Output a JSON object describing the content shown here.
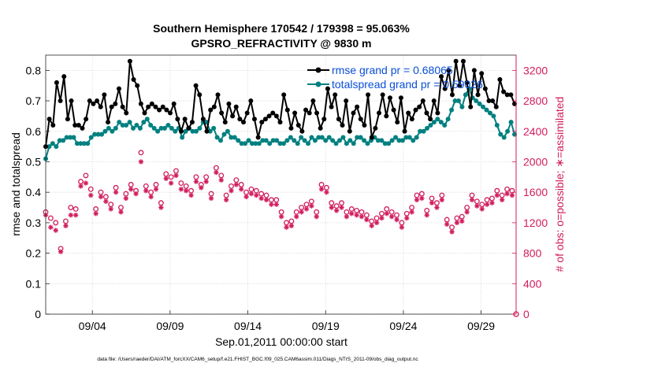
{
  "chart_data": {
    "type": "line",
    "title": "Southern Hemisphere 170542 / 179398 = 95.063%",
    "subtitle": "GPSRO_REFRACTIVITY @ 9830 m",
    "xlabel": "Sep.01,2011 00:00:00 start",
    "ylabel_left": "rmse and totalspread",
    "ylabel_right": "# of obs: o=possible; ∗=assimilated",
    "footer": "data file: /Users/raeder/DAI/ATM_forcXX/CAM6_setup/f.e21.FHIST_BGC.f09_025.CAM6assim.011/Diags_NTrS_2011-09/obs_diag_output.nc",
    "x_tick_labels": [
      "09/04",
      "09/09",
      "09/14",
      "09/19",
      "09/24",
      "09/29"
    ],
    "x_tick_days": [
      4,
      9,
      14,
      19,
      24,
      29
    ],
    "xlim_days": [
      1,
      31.25
    ],
    "ylim_left": [
      0,
      0.85
    ],
    "left_ticks": [
      "0",
      "0.1",
      "0.2",
      "0.3",
      "0.4",
      "0.5",
      "0.6",
      "0.7",
      "0.8"
    ],
    "ylim_right": [
      0,
      3400
    ],
    "right_ticks": [
      "0",
      "400",
      "800",
      "1200",
      "1600",
      "2000",
      "2400",
      "2800",
      "3200"
    ],
    "grid": true,
    "legend_position": "top-right",
    "colors": {
      "rmse": "#000000",
      "spread": "#008080",
      "obs": "#d11c5d",
      "legend_text": "#0a4fd8",
      "right_axis": "#d11c5d"
    },
    "series": [
      {
        "name": "rmse grand pr = 0.68065",
        "axis": "left",
        "values": [
          0.55,
          0.64,
          0.62,
          0.76,
          0.7,
          0.78,
          0.64,
          0.7,
          0.62,
          0.62,
          0.61,
          0.64,
          0.7,
          0.69,
          0.7,
          0.68,
          0.72,
          0.63,
          0.68,
          0.69,
          0.74,
          0.68,
          0.66,
          0.83,
          0.77,
          0.75,
          0.69,
          0.66,
          0.68,
          0.69,
          0.68,
          0.67,
          0.68,
          0.67,
          0.66,
          0.69,
          0.64,
          0.6,
          0.64,
          0.61,
          0.63,
          0.75,
          0.72,
          0.64,
          0.6,
          0.67,
          0.68,
          0.72,
          0.66,
          0.63,
          0.69,
          0.65,
          0.68,
          0.64,
          0.63,
          0.66,
          0.7,
          0.64,
          0.58,
          0.63,
          0.64,
          0.65,
          0.66,
          0.65,
          0.63,
          0.72,
          0.67,
          0.61,
          0.66,
          0.62,
          0.6,
          0.67,
          0.66,
          0.7,
          0.66,
          0.61,
          0.64,
          0.74,
          0.68,
          0.72,
          0.64,
          0.62,
          0.7,
          0.6,
          0.66,
          0.68,
          0.64,
          0.62,
          0.72,
          0.58,
          0.61,
          0.66,
          0.72,
          0.65,
          0.71,
          0.67,
          0.63,
          0.71,
          0.6,
          0.66,
          0.64,
          0.67,
          0.68,
          0.7,
          0.66,
          0.64,
          0.7,
          0.66,
          0.78,
          0.74,
          0.8,
          0.72,
          0.83,
          0.75,
          0.83,
          0.76,
          0.68,
          0.8,
          0.72,
          0.79,
          0.74,
          0.7,
          0.7,
          0.68,
          0.77,
          0.73,
          0.72,
          0.72,
          0.69
        ]
      },
      {
        "name": "totalspread grand pr = 0.59026",
        "axis": "left",
        "values": [
          0.51,
          0.55,
          0.56,
          0.55,
          0.57,
          0.57,
          0.58,
          0.58,
          0.58,
          0.56,
          0.56,
          0.56,
          0.56,
          0.58,
          0.59,
          0.59,
          0.59,
          0.6,
          0.61,
          0.6,
          0.61,
          0.63,
          0.62,
          0.62,
          0.63,
          0.61,
          0.62,
          0.61,
          0.63,
          0.64,
          0.62,
          0.61,
          0.6,
          0.61,
          0.61,
          0.62,
          0.61,
          0.6,
          0.61,
          0.58,
          0.6,
          0.61,
          0.6,
          0.6,
          0.61,
          0.63,
          0.63,
          0.6,
          0.61,
          0.58,
          0.57,
          0.59,
          0.6,
          0.58,
          0.58,
          0.57,
          0.56,
          0.56,
          0.57,
          0.56,
          0.56,
          0.56,
          0.57,
          0.57,
          0.56,
          0.57,
          0.57,
          0.56,
          0.56,
          0.57,
          0.58,
          0.57,
          0.56,
          0.58,
          0.57,
          0.56,
          0.58,
          0.57,
          0.58,
          0.58,
          0.57,
          0.58,
          0.57,
          0.56,
          0.57,
          0.58,
          0.56,
          0.57,
          0.56,
          0.58,
          0.58,
          0.57,
          0.56,
          0.57,
          0.58,
          0.57,
          0.57,
          0.56,
          0.56,
          0.57,
          0.58,
          0.57,
          0.57,
          0.58,
          0.58,
          0.57,
          0.58,
          0.6,
          0.6,
          0.61,
          0.62,
          0.63,
          0.64,
          0.63,
          0.62,
          0.64,
          0.67,
          0.7,
          0.7,
          0.68,
          0.72,
          0.74,
          0.71,
          0.7,
          0.69,
          0.68,
          0.67,
          0.66,
          0.65,
          0.62,
          0.59,
          0.58,
          0.6,
          0.63,
          0.59
        ]
      },
      {
        "name": "possible",
        "axis": "right",
        "marker": "o",
        "values": [
          1340,
          1260,
          1200,
          860,
          1220,
          1400,
          1380,
          1740,
          1820,
          1640,
          1380,
          1600,
          1540,
          1440,
          1660,
          1400,
          1580,
          1700,
          1620,
          2120,
          1680,
          1600,
          1700,
          1460,
          1840,
          1800,
          1880,
          1720,
          1680,
          1620,
          1800,
          1700,
          1800,
          1580,
          1920,
          1820,
          1560,
          1680,
          1760,
          1700,
          1600,
          1640,
          1620,
          1580,
          1560,
          1500,
          1500,
          1340,
          1200,
          1220,
          1340,
          1400,
          1440,
          1480,
          1340,
          1700,
          1660,
          1460,
          1420,
          1460,
          1340,
          1380,
          1360,
          1340,
          1300,
          1220,
          1260,
          1320,
          1380,
          1340,
          1300,
          1200,
          1320,
          1400,
          1560,
          1580,
          1360,
          1520,
          1460,
          1560,
          1240,
          1140,
          1260,
          1280,
          1400,
          1560,
          1480,
          1440,
          1500,
          1520,
          1620,
          1560,
          1640,
          1620
        ]
      },
      {
        "name": "assimilated",
        "axis": "right",
        "marker": "*",
        "values": [
          1300,
          1140,
          1100,
          820,
          1160,
          1300,
          1300,
          1680,
          1720,
          1560,
          1320,
          1540,
          1480,
          1380,
          1600,
          1340,
          1520,
          1640,
          1580,
          2000,
          1620,
          1540,
          1640,
          1400,
          1780,
          1720,
          1820,
          1640,
          1620,
          1560,
          1740,
          1660,
          1740,
          1520,
          1860,
          1760,
          1500,
          1620,
          1700,
          1640,
          1540,
          1580,
          1560,
          1520,
          1500,
          1440,
          1440,
          1280,
          1140,
          1160,
          1280,
          1340,
          1380,
          1420,
          1280,
          1640,
          1600,
          1400,
          1360,
          1400,
          1280,
          1320,
          1300,
          1280,
          1240,
          1160,
          1200,
          1260,
          1320,
          1280,
          1240,
          1140,
          1260,
          1340,
          1500,
          1520,
          1300,
          1460,
          1400,
          1500,
          1180,
          1080,
          1200,
          1220,
          1340,
          1500,
          1420,
          1380,
          1440,
          1460,
          1560,
          1500,
          1580,
          1560
        ]
      }
    ],
    "obs_start_day": 1.0,
    "obs_step_days": 0.3225
  }
}
